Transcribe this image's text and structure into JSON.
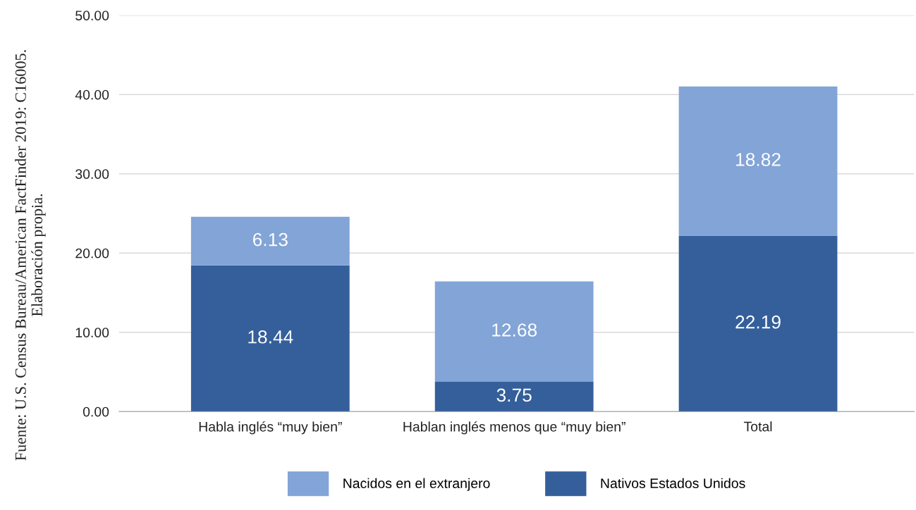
{
  "chart_data": {
    "type": "bar",
    "stacked": true,
    "categories": [
      "Habla inglés “muy bien”",
      "Hablan inglés menos que “muy bien”",
      "Total"
    ],
    "series": [
      {
        "name": "Nativos Estados Unidos",
        "color": "#345f9b",
        "values": [
          18.44,
          3.75,
          22.19
        ]
      },
      {
        "name": "Nacidos en el extranjero",
        "color": "#82a4d7",
        "values": [
          6.13,
          12.68,
          18.82
        ]
      }
    ],
    "ylim": [
      0,
      50
    ],
    "yticks": [
      {
        "value": 0,
        "label": "0.00"
      },
      {
        "value": 10,
        "label": "10.00"
      },
      {
        "value": 20,
        "label": "20.00"
      },
      {
        "value": 30,
        "label": "30.00"
      },
      {
        "value": 40,
        "label": "40.00"
      },
      {
        "value": 50,
        "label": "50.00"
      }
    ],
    "grid": "y",
    "legend": "bottom",
    "data_labels": true,
    "annotations": [
      "Fuente: U.S. Census Bureau/American FactFinder 2019: C16005.\nElaboración propia."
    ]
  }
}
